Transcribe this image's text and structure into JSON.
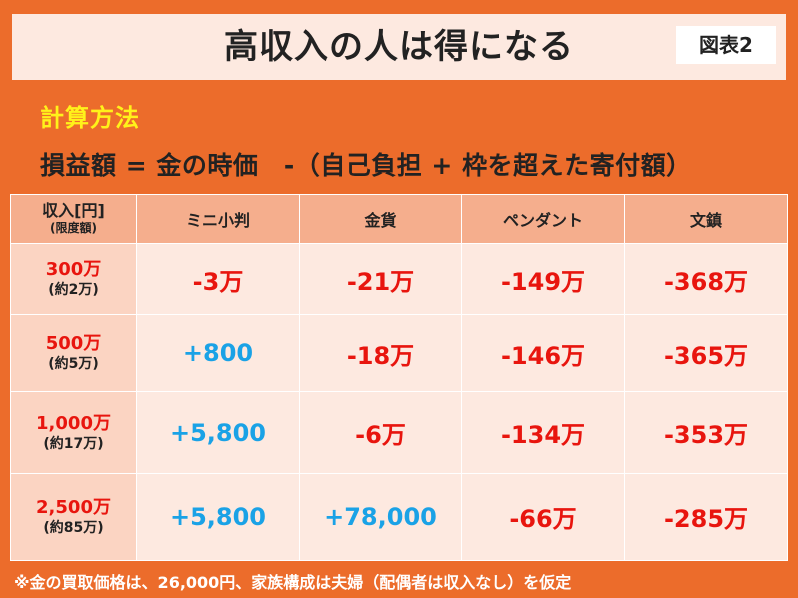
{
  "title": "高収入の人は得になる",
  "figure_label": "図表2",
  "method_label": "計算方法",
  "formula": "損益額 = 金の時価　-（自己負担 + 枠を超えた寄付額）",
  "table": {
    "row_header_main": "収入[円]",
    "row_header_sub": "(限度額)",
    "columns": [
      "ミニ小判",
      "金貨",
      "ペンダント",
      "文鎮"
    ],
    "rows": [
      {
        "income": "300万",
        "limit": "(約2万)",
        "cells": [
          {
            "text": "-3万",
            "sign": "neg"
          },
          {
            "text": "-21万",
            "sign": "neg"
          },
          {
            "text": "-149万",
            "sign": "neg"
          },
          {
            "text": "-368万",
            "sign": "neg"
          }
        ]
      },
      {
        "income": "500万",
        "limit": "(約5万)",
        "cells": [
          {
            "text": "+800",
            "sign": "pos"
          },
          {
            "text": "-18万",
            "sign": "neg"
          },
          {
            "text": "-146万",
            "sign": "neg"
          },
          {
            "text": "-365万",
            "sign": "neg"
          }
        ]
      },
      {
        "income": "1,000万",
        "limit": "(約17万)",
        "cells": [
          {
            "text": "+5,800",
            "sign": "pos"
          },
          {
            "text": "-6万",
            "sign": "neg"
          },
          {
            "text": "-134万",
            "sign": "neg"
          },
          {
            "text": "-353万",
            "sign": "neg"
          }
        ]
      },
      {
        "income": "2,500万",
        "limit": "(約85万)",
        "cells": [
          {
            "text": "+5,800",
            "sign": "pos"
          },
          {
            "text": "+78,000",
            "sign": "pos"
          },
          {
            "text": "-66万",
            "sign": "neg"
          },
          {
            "text": "-285万",
            "sign": "neg"
          }
        ]
      }
    ]
  },
  "footnote": "※金の買取価格は、26,000円、家族構成は夫婦（配偶者は収入なし）を仮定",
  "colors": {
    "background": "#ec6c2b",
    "title_bg": "#fde9e0",
    "header_bg": "#f5ae8d",
    "row_header_bg": "#fbd4c2",
    "cell_bg": "#fde9e0",
    "negative": "#e8150e",
    "positive": "#1aa2e6",
    "method_label": "#fff21a"
  }
}
